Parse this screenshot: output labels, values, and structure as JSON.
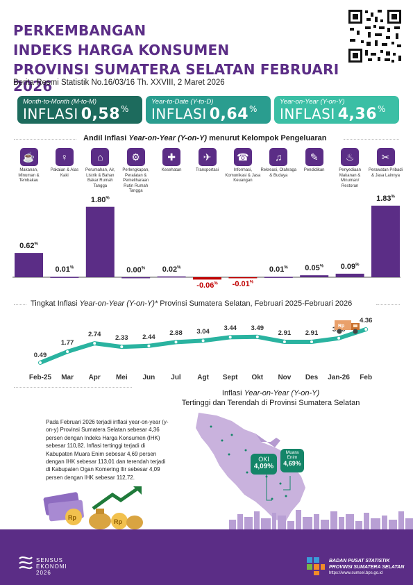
{
  "header": {
    "title_lines": [
      "PERKEMBANGAN",
      "INDEKS HARGA KONSUMEN",
      "PROVINSI SUMATERA SELATAN FEBRUARI 2026"
    ],
    "subline": "Berita Resmi Statistik No.16/03/16 Th. XXVIII, 2 Maret 2026"
  },
  "cards": [
    {
      "label": "Month-to-Month (M-to-M)",
      "word": "INFLASI",
      "value": "0,58",
      "unit": "%",
      "color": "#1d6b5d"
    },
    {
      "label": "Year-to-Date (Y-to-D)",
      "word": "INFLASI",
      "value": "0,64",
      "unit": "%",
      "color": "#2a9d8f"
    },
    {
      "label": "Year-on-Year (Y-on-Y)",
      "word": "INFLASI",
      "value": "4,36",
      "unit": "%",
      "color": "#3bbfa5"
    }
  ],
  "sections": {
    "andil_title_a": "Andil Inflasi ",
    "andil_title_b": "Year-on-Year (Y-on-Y)",
    "andil_title_c": " menurut Kelompok Pengeluaran",
    "tingkat_title_a": "Tingkat Inflasi  ",
    "tingkat_title_b": "Year-on-Year (Y-on-Y)*",
    "tingkat_title_c": " Provinsi Sumatera Selatan, Februari 2025-Februari 2026",
    "map_title_a": "Inflasi ",
    "map_title_b": "Year-on-Year (Y-on-Y)",
    "map_title_line2": "Tertinggi dan Terendah di Provinsi Sumatera Selatan"
  },
  "chart_data": [
    {
      "type": "bar",
      "categories": [
        "Makanan, Minuman & Tembakau",
        "Pakaian & Alas Kaki",
        "Perumahan, Air, Listrik & Bahan Bakar Rumah Tangga",
        "Perlengkapan, Peralatan & Pemeliharaan Rutin Rumah Tangga",
        "Kesehatan",
        "Transportasi",
        "Informasi, Komunikasi & Jasa Keuangan",
        "Rekreasi, Olahraga & Budaya",
        "Pendidikan",
        "Penyediaan Makanan & Minuman/ Restoran",
        "Perawatan Pribadi & Jasa Lainnya"
      ],
      "values": [
        0.62,
        0.01,
        1.8,
        0.0,
        0.02,
        -0.06,
        -0.01,
        0.01,
        0.05,
        0.09,
        1.83
      ],
      "labels": [
        "0.62",
        "0.01",
        "1.80",
        "0.00",
        "0.02",
        "-0.06",
        "-0.01",
        "0.01",
        "0.05",
        "0.09",
        "1.83"
      ],
      "unit": "%",
      "icons": [
        "food-icon",
        "clothing-icon",
        "house-icon",
        "appliance-icon",
        "health-icon",
        "plane-icon",
        "phone-icon",
        "recreation-icon",
        "education-icon",
        "restaurant-icon",
        "personal-care-icon"
      ],
      "color_positive": "#5b2d86",
      "color_negative": "#c00000"
    },
    {
      "type": "line",
      "x": [
        "Feb-25",
        "Mar",
        "Apr",
        "Mei",
        "Jun",
        "Jul",
        "Agt",
        "Sept",
        "Okt",
        "Nov",
        "Des",
        "Jan-26",
        "Feb"
      ],
      "values": [
        0.49,
        1.77,
        2.74,
        2.33,
        2.44,
        2.88,
        3.04,
        3.44,
        3.49,
        2.91,
        2.91,
        3.33,
        4.36
      ],
      "color": "#2ab3a0"
    }
  ],
  "paragraph": "Pada Februari 2026 terjadi inflasi year-on-year (y-on-y) Provinsi Sumatera Selatan sebesar 4,36 persen dengan Indeks Harga Konsumen (IHK) sebesar 110,82. Inflasi tertinggi terjadi di Kabupaten Muara Enim sebesar 4,69 persen dengan IHK sebesar 113,01 dan terendah terjadi di Kabupaten Ogan Komering Ilir sebesar 4,09 persen dengan IHK sebesar 112,72.",
  "map": {
    "oki_name": "OKI",
    "oki_value": "4,09%",
    "enim_name_1": "Muara",
    "enim_name_2": "Enim",
    "enim_value": "4,69%"
  },
  "footer": {
    "sensus_1": "SENSUS",
    "sensus_2": "EKONOMI",
    "sensus_3": "2026",
    "bps_1": "BADAN PUSAT STATISTIK",
    "bps_2": "PROVINSI SUMATERA SELATAN",
    "bps_url": "https://www.sumsel.bps.go.id"
  }
}
